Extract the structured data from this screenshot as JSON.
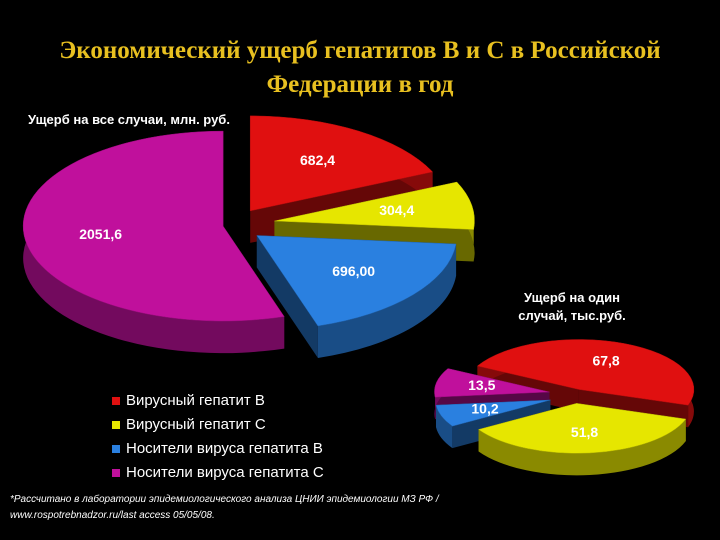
{
  "title": [
    "Экономический ущерб гепатитов В и С в Российской",
    "Федерации в год"
  ],
  "footnote": [
    "*Рассчитано в лаборатории эпидемиологического анализа ЦНИИ эпидемиологии МЗ РФ /",
    "www.rospotrebnadzor.ru/last access 05/05/08."
  ],
  "chart_data": [
    {
      "type": "pie",
      "title": [
        "Ущерб на все случаи, млн. руб."
      ],
      "categories": [
        "Вирусный гепатит В",
        "Вирусный гепатит С",
        "Носители вируса гепатита В",
        "Носители вируса гепатита С"
      ],
      "values": [
        682.4,
        304.4,
        696.0,
        2051.6
      ],
      "value_labels": [
        "682,4",
        "304,4",
        "696,00",
        "2051,6"
      ],
      "colors": [
        "#e01010",
        "#e6e600",
        "#2a80e0",
        "#c0109c"
      ],
      "legend": "bottom-left"
    },
    {
      "type": "pie",
      "title": [
        "Ущерб на один",
        "случай, тыс.руб."
      ],
      "values": [
        67.8,
        51.8,
        10.2,
        13.5
      ],
      "value_labels": [
        "67,8",
        "51,8",
        "10,2",
        "13,5"
      ],
      "colors": [
        "#e01010",
        "#e6e600",
        "#2a80e0",
        "#c0109c"
      ]
    }
  ]
}
